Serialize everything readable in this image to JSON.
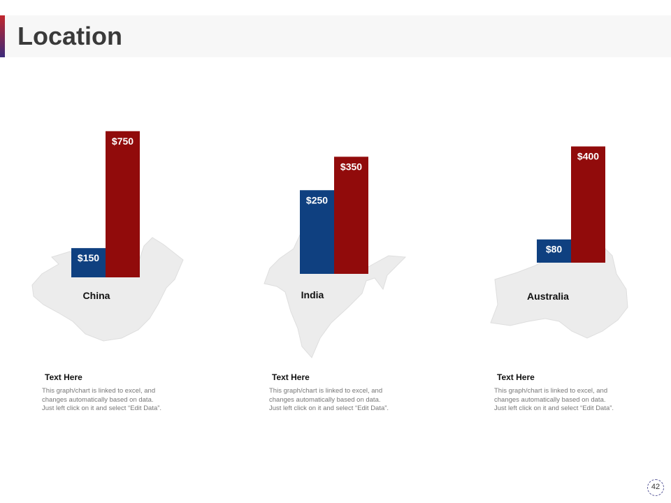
{
  "page": {
    "title": "Location",
    "page_number": "42"
  },
  "colors": {
    "blue": "#0f4080",
    "red": "#910b0b",
    "map": "#ececec",
    "accent_top": "#c1272d",
    "accent_bottom": "#3b2a7a"
  },
  "chart_data": [
    {
      "type": "bar",
      "country": "China",
      "series": [
        {
          "value": 150,
          "label": "$150",
          "color": "#0f4080"
        },
        {
          "value": 750,
          "label": "$750",
          "color": "#910b0b"
        }
      ]
    },
    {
      "type": "bar",
      "country": "India",
      "series": [
        {
          "value": 250,
          "label": "$250",
          "color": "#0f4080"
        },
        {
          "value": 350,
          "label": "$350",
          "color": "#910b0b"
        }
      ]
    },
    {
      "type": "bar",
      "country": "Australia",
      "series": [
        {
          "value": 80,
          "label": "$80",
          "color": "#0f4080"
        },
        {
          "value": 400,
          "label": "$400",
          "color": "#910b0b"
        }
      ]
    }
  ],
  "captions": [
    {
      "heading": "Text Here",
      "body": "This graph/chart is linked to excel, and\nchanges automatically based on data.\nJust left click on it and select “Edit Data”."
    },
    {
      "heading": "Text Here",
      "body": "This graph/chart is linked to excel, and\nchanges automatically based on data.\nJust left click on it and select “Edit Data”."
    },
    {
      "heading": "Text Here",
      "body": "This graph/chart is linked to excel, and\nchanges automatically based on data.\nJust left click on it and select “Edit Data”."
    }
  ]
}
